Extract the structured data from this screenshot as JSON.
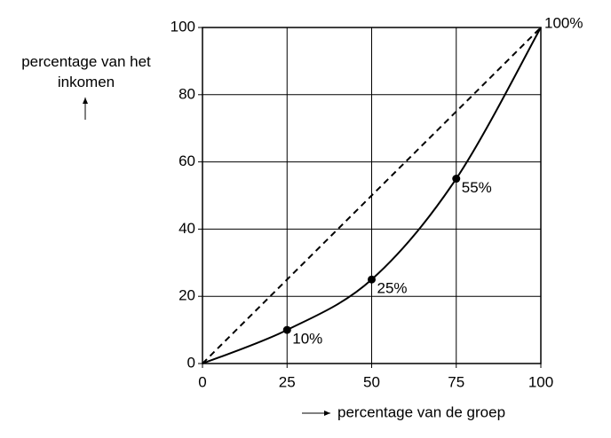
{
  "chart_data": {
    "type": "line",
    "x": [
      0,
      25,
      50,
      75,
      100
    ],
    "series": [
      {
        "color": "#000000",
        "linestyle": "dashed",
        "values": [
          0,
          25,
          50,
          75,
          100
        ]
      },
      {
        "color": "#000000",
        "linestyle": "solid",
        "smooth": true,
        "values": [
          0,
          10,
          25,
          55,
          100
        ],
        "value_labels": [
          null,
          "10%",
          "25%",
          "55%",
          "100%"
        ]
      }
    ],
    "xlim": [
      0,
      100
    ],
    "ylim": [
      0,
      100
    ],
    "xticks": [
      0,
      25,
      50,
      75,
      100
    ],
    "yticks": [
      0,
      20,
      40,
      60,
      80,
      100
    ],
    "grid": true,
    "x_label": "percentage van de groep",
    "y_label": "percentage van het inkomen"
  }
}
